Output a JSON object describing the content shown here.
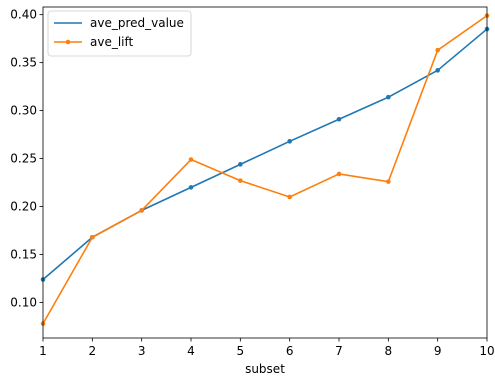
{
  "chart_data": {
    "type": "line",
    "xlabel": "subset",
    "ylabel": "",
    "title": "",
    "x": [
      1,
      2,
      3,
      4,
      5,
      6,
      7,
      8,
      9,
      10
    ],
    "xlim": [
      1,
      10
    ],
    "ylim": [
      0.063,
      0.408
    ],
    "xticks": [
      1,
      2,
      3,
      4,
      5,
      6,
      7,
      8,
      9,
      10
    ],
    "yticks": [
      0.1,
      0.15,
      0.2,
      0.25,
      0.3,
      0.35,
      0.4
    ],
    "ytick_labels": [
      "0.10",
      "0.15",
      "0.20",
      "0.25",
      "0.30",
      "0.35",
      "0.40"
    ],
    "grid": false,
    "legend_position": "top-left",
    "series": [
      {
        "name": "ave_pred_value",
        "color": "#1f77b4",
        "values": [
          0.124,
          0.168,
          0.196,
          0.22,
          0.244,
          0.268,
          0.291,
          0.314,
          0.342,
          0.385
        ]
      },
      {
        "name": "ave_lift",
        "color": "#ff7f0e",
        "values": [
          0.078,
          0.168,
          0.196,
          0.249,
          0.227,
          0.21,
          0.234,
          0.226,
          0.363,
          0.399
        ]
      }
    ]
  }
}
